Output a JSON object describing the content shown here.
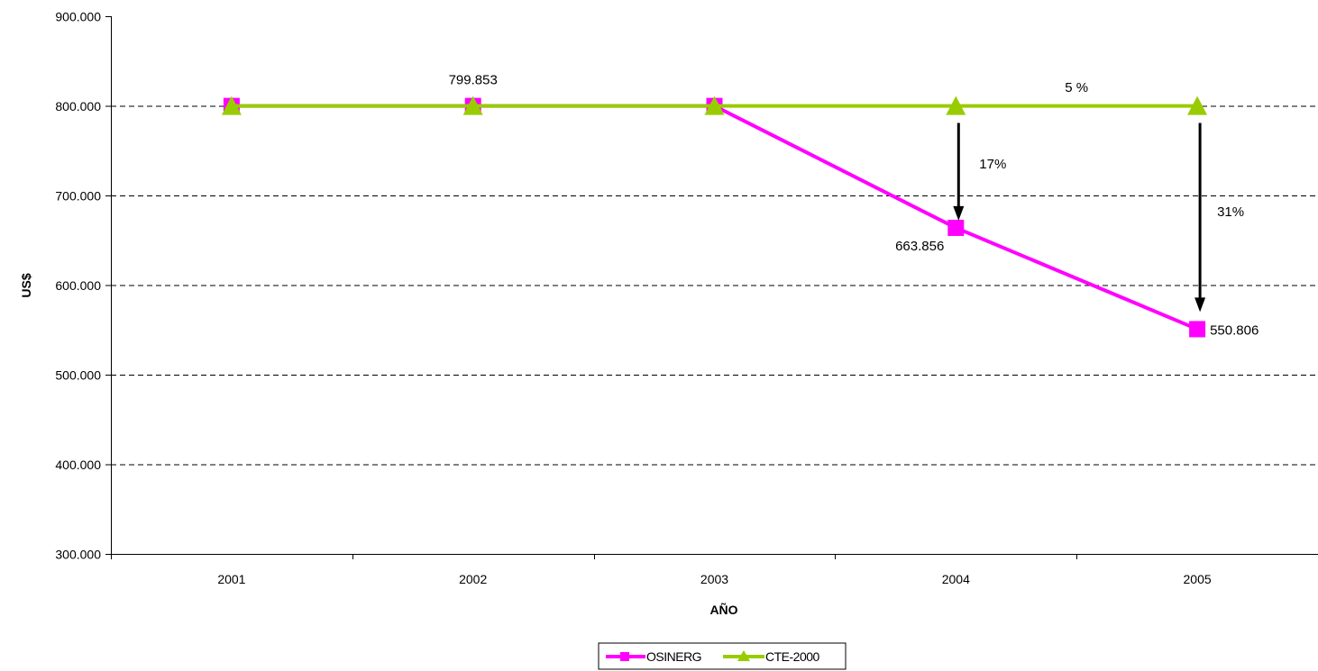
{
  "chart_data": {
    "type": "line",
    "title": "",
    "xlabel": "AÑO",
    "ylabel": "US$",
    "categories": [
      "2001",
      "2002",
      "2003",
      "2004",
      "2005"
    ],
    "ylim": [
      300000,
      900000
    ],
    "yticks": [
      300000,
      400000,
      500000,
      600000,
      700000,
      800000,
      900000
    ],
    "ytick_labels": [
      "300.000",
      "400.000",
      "500.000",
      "600.000",
      "700.000",
      "800.000",
      "900.000"
    ],
    "grid": "horizontal dashed",
    "legend_position": "bottom",
    "series": [
      {
        "name": "OSINERG",
        "values": [
          799853,
          799853,
          799853,
          663856,
          550806
        ],
        "color": "#ff00ff",
        "marker": "square"
      },
      {
        "name": "CTE-2000",
        "values": [
          799853,
          799853,
          799853,
          799853,
          799853
        ],
        "color": "#99cc00",
        "marker": "triangle"
      }
    ],
    "data_labels": [
      {
        "text": "799.853",
        "category": "2002",
        "value": 799853,
        "placement": "above"
      },
      {
        "text": "663.856",
        "category": "2004",
        "value": 663856,
        "placement": "below-left"
      },
      {
        "text": "550.806",
        "category": "2005",
        "value": 550806,
        "placement": "right"
      }
    ],
    "annotations": [
      {
        "text": "5 %",
        "placement": "between 2004 and 2005, above CTE-2000 line"
      },
      {
        "text": "17%",
        "placement": "right of arrow at 2004",
        "arrow_category": "2004",
        "arrow_from": 800000,
        "arrow_to": 672000
      },
      {
        "text": "31%",
        "placement": "right of arrow at 2005",
        "arrow_category": "2005",
        "arrow_from": 800000,
        "arrow_to": 570000
      }
    ]
  },
  "colors": {
    "osinerg": "#ff00ff",
    "cte": "#99cc00",
    "grid": "#000000",
    "arrow": "#000000"
  }
}
